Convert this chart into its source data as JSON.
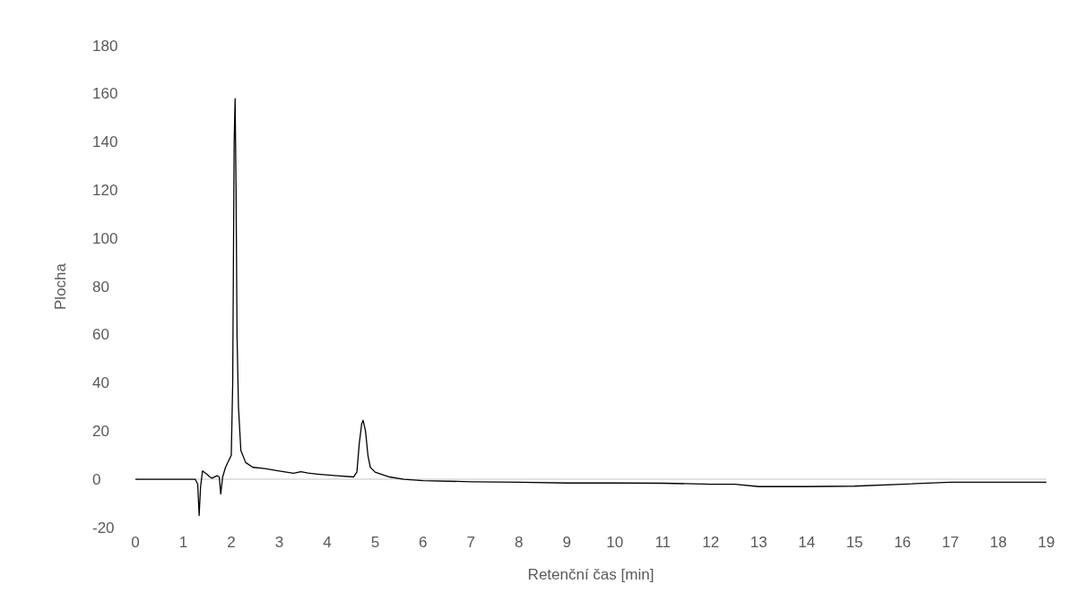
{
  "chart_data": {
    "type": "line",
    "xlabel": "Retenční čas [min]",
    "ylabel": "Plocha",
    "xlim": [
      0,
      19
    ],
    "xticks": [
      0,
      1,
      2,
      3,
      4,
      5,
      6,
      7,
      8,
      9,
      10,
      11,
      12,
      13,
      14,
      15,
      16,
      17,
      18,
      19
    ],
    "ylim": [
      -20,
      180
    ],
    "yticks": [
      -20,
      0,
      20,
      40,
      60,
      80,
      100,
      120,
      140,
      160,
      180
    ],
    "grid": false,
    "marker": "none",
    "line_style": "solid",
    "ref_lines": [
      {
        "axis": "y",
        "value": 0,
        "color": "#d9d9d9"
      }
    ],
    "series": [
      {
        "color": "#000000",
        "x": [
          0,
          0.5,
          1.0,
          1.25,
          1.3,
          1.33,
          1.36,
          1.4,
          1.5,
          1.55,
          1.6,
          1.7,
          1.75,
          1.78,
          1.82,
          1.88,
          1.95,
          2.0,
          2.03,
          2.06,
          2.08,
          2.1,
          2.12,
          2.15,
          2.2,
          2.3,
          2.45,
          2.7,
          3.0,
          3.3,
          3.45,
          3.6,
          3.8,
          4.2,
          4.55,
          4.62,
          4.67,
          4.72,
          4.75,
          4.8,
          4.85,
          4.9,
          5.0,
          5.3,
          5.6,
          6.0,
          7,
          8,
          9,
          10,
          11,
          12,
          12.5,
          13,
          14,
          15,
          16,
          17,
          18,
          19
        ],
        "values": [
          0,
          0,
          0,
          0,
          -2,
          -15,
          -3,
          3.5,
          2,
          1,
          0.5,
          1.5,
          1.0,
          -6,
          1,
          5,
          8,
          10,
          40,
          140,
          158,
          120,
          60,
          30,
          12,
          7,
          5,
          4.5,
          3.5,
          2.5,
          3.2,
          2.6,
          2.2,
          1.5,
          1.0,
          3,
          15,
          23,
          24.5,
          20,
          10,
          5,
          3,
          1,
          0,
          -0.5,
          -1,
          -1.2,
          -1.5,
          -1.5,
          -1.6,
          -2,
          -2,
          -3,
          -3,
          -2.8,
          -2,
          -1.2,
          -1.2,
          -1.2
        ]
      }
    ]
  }
}
